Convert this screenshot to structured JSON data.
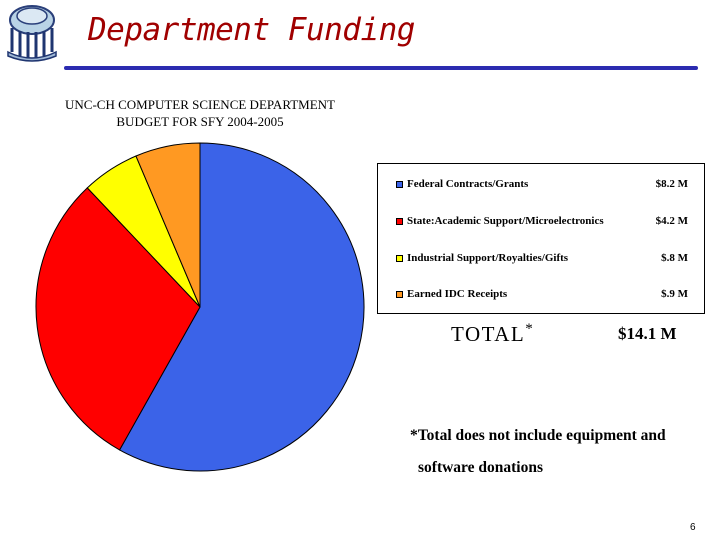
{
  "slide": {
    "title": "Department Funding",
    "page_number": "6"
  },
  "logo": {
    "icon": "old-well-logo-icon"
  },
  "chart_data": {
    "type": "pie",
    "title_lines": [
      "UNC-CH COMPUTER SCIENCE DEPARTMENT",
      "BUDGET FOR SFY 2004-2005"
    ],
    "categories": [
      "Federal Contracts/Grants",
      "State:Academic Support/Microelectronics",
      "Industrial Support/Royalties/Gifts",
      "Earned IDC Receipts"
    ],
    "values": [
      8.2,
      4.2,
      0.8,
      0.9
    ],
    "value_labels": [
      "$8.2 M",
      "$4.2 M",
      "$.8 M",
      "$.9 M"
    ],
    "colors": [
      "#3b63e8",
      "#ff0000",
      "#ffff00",
      "#ff9922"
    ],
    "legend_position": "right",
    "start_angle_deg": 0,
    "direction": "clockwise"
  },
  "total": {
    "label": "TOTAL",
    "marker": "*",
    "value": "$14.1 M"
  },
  "footnote": {
    "line1": "*Total does not include equipment and",
    "line2": "software donations"
  }
}
